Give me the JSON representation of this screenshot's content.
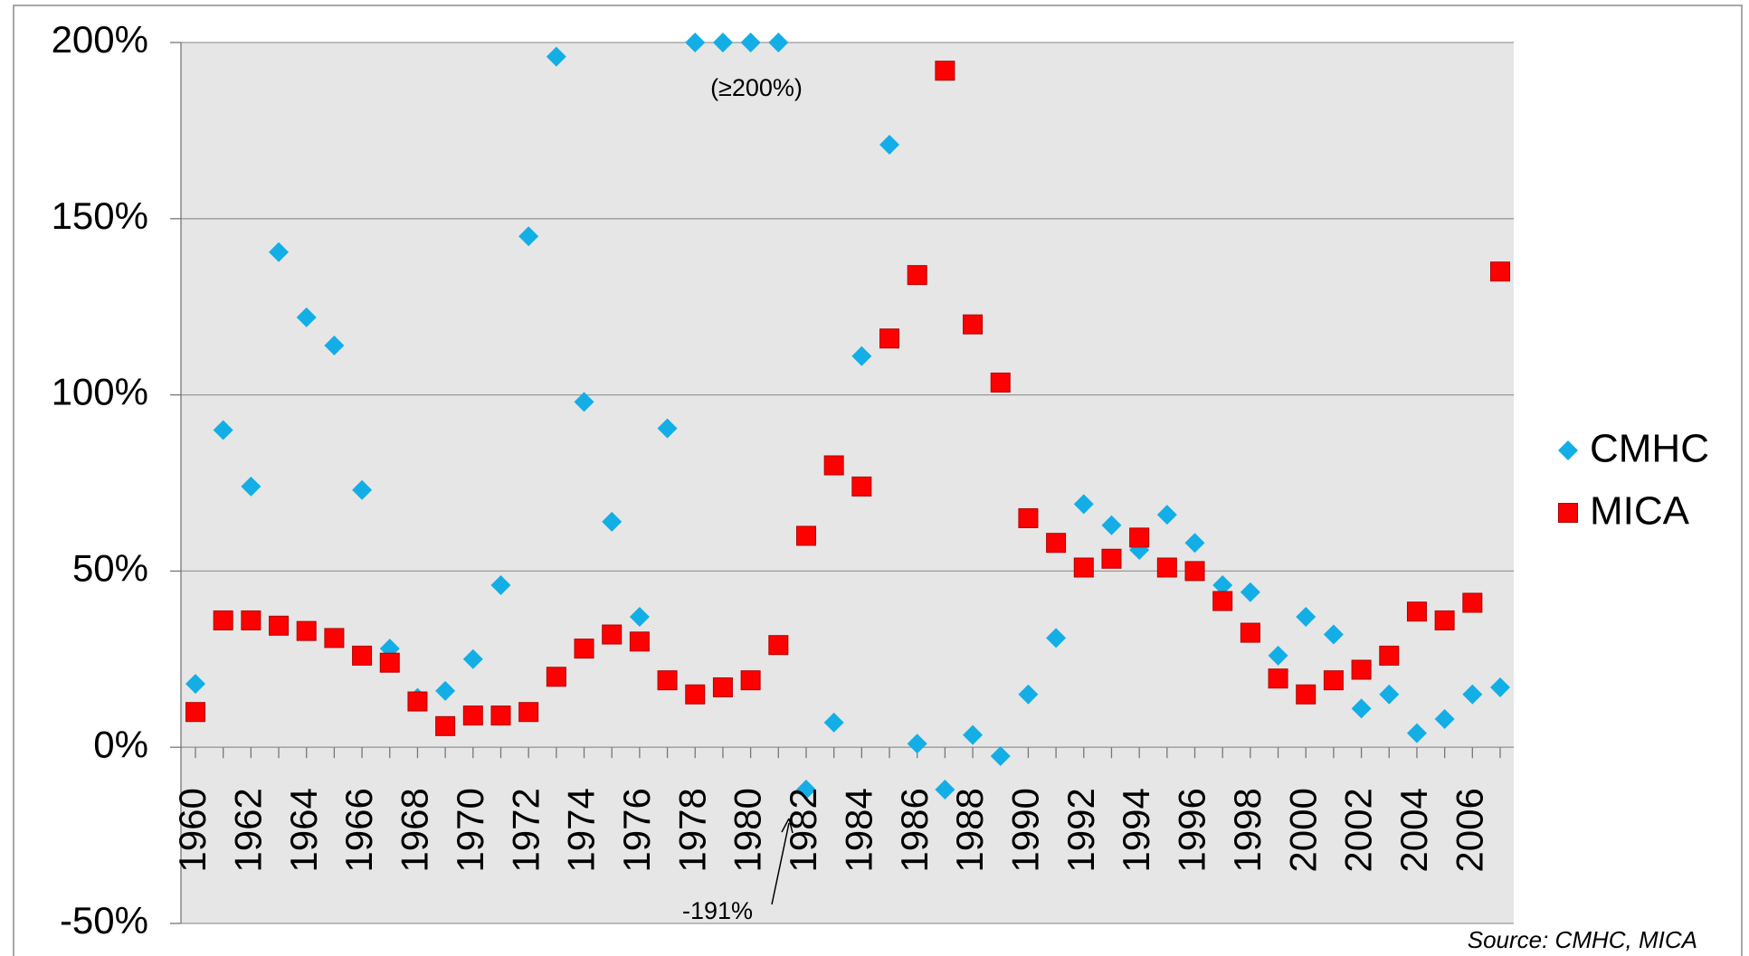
{
  "chart_data": {
    "type": "scatter",
    "categories": [
      "1960",
      null,
      "1962",
      null,
      "1964",
      null,
      "1966",
      null,
      "1968",
      null,
      "1970",
      null,
      "1972",
      null,
      "1974",
      null,
      "1976",
      null,
      "1978",
      null,
      "1980",
      null,
      "1982",
      null,
      "1984",
      null,
      "1986",
      null,
      "1988",
      null,
      "1990",
      null,
      "1992",
      null,
      "1994",
      null,
      "1996",
      null,
      "1998",
      null,
      "2000",
      null,
      "2002",
      null,
      "2004",
      null,
      "2006",
      null
    ],
    "series": [
      {
        "name": "CMHC",
        "color": "#13aee6",
        "marker": "diamond",
        "values": [
          18,
          90,
          74,
          140.5,
          122,
          114,
          73,
          28,
          14,
          16,
          25,
          46,
          145,
          196,
          98,
          64,
          37,
          90.5,
          200,
          200,
          200,
          200,
          -12,
          7,
          111,
          171,
          1,
          -12,
          3.5,
          -2.5,
          15,
          31,
          69,
          63,
          56,
          66,
          58,
          46,
          44,
          26,
          37,
          32,
          11,
          15,
          4,
          8,
          15,
          17
        ]
      },
      {
        "name": "MICA",
        "color": "#ff0000",
        "marker": "square",
        "values": [
          10,
          36,
          36,
          34.5,
          33,
          31,
          26,
          24,
          13,
          6,
          9,
          9,
          10,
          20,
          28,
          32,
          30,
          19,
          15,
          17,
          19,
          29,
          60,
          80,
          74,
          116,
          134,
          192,
          120,
          103.5,
          65,
          58,
          51,
          53.5,
          59.5,
          51,
          50,
          41.5,
          32.5,
          19.5,
          15,
          19,
          22,
          26,
          38.5,
          36,
          41,
          135
        ]
      }
    ],
    "ylim": [
      -50,
      200
    ],
    "yticks": [
      {
        "value": -50,
        "label": "-50%"
      },
      {
        "value": 0,
        "label": "0%"
      },
      {
        "value": 50,
        "label": "50%"
      },
      {
        "value": 100,
        "label": "100%"
      },
      {
        "value": 150,
        "label": "150%"
      },
      {
        "value": 200,
        "label": "200%"
      }
    ],
    "grid": true,
    "legend": "right",
    "annotations": [
      {
        "text": "(≥200%)"
      },
      {
        "text": "-191%"
      }
    ],
    "source": "Source: CMHC, MICA"
  }
}
